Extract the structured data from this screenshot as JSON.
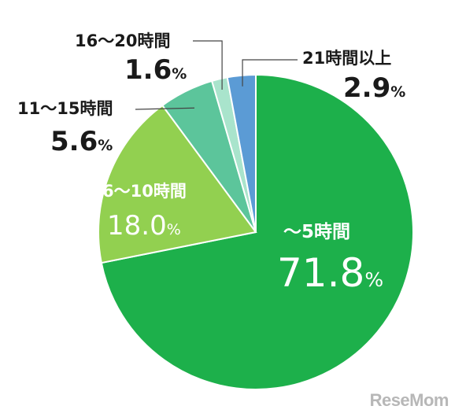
{
  "chart_data": {
    "type": "pie",
    "slices": [
      {
        "label": "～5時間",
        "value": 71.8,
        "value_text": "71.8",
        "color": "#1db04b"
      },
      {
        "label": "6～10時間",
        "value": 18.0,
        "value_text": "18.0",
        "color": "#92d050"
      },
      {
        "label": "11～15時間",
        "value": 5.6,
        "value_text": "5.6",
        "color": "#5cc59b"
      },
      {
        "label": "16～20時間",
        "value": 1.6,
        "value_text": "1.6",
        "color": "#a9e4cc"
      },
      {
        "label": "21時間以上",
        "value": 2.9,
        "value_text": "2.9",
        "color": "#5b9bd5"
      }
    ],
    "unit": "%",
    "start": "12 o'clock",
    "direction": "clockwise"
  },
  "watermark": "ReseMom"
}
